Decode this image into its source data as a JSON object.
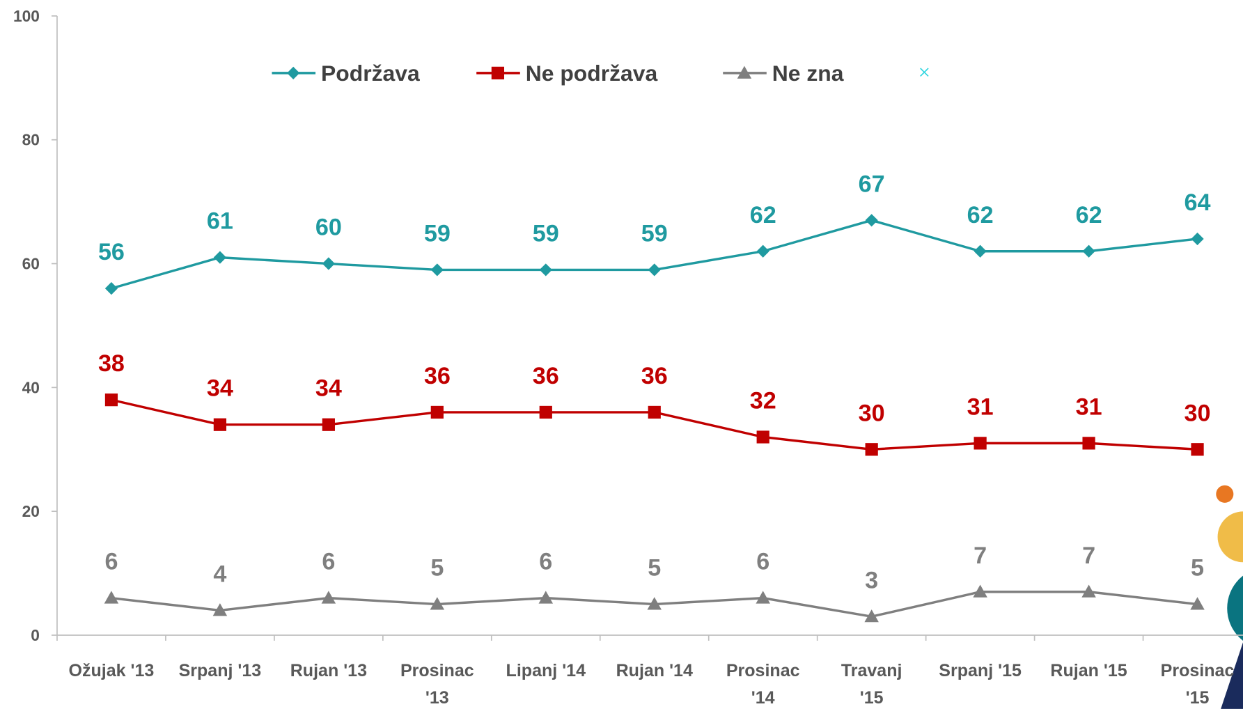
{
  "chart_data": {
    "type": "line",
    "categories": [
      "Ožujak '13",
      "Srpanj '13",
      "Rujan '13",
      "Prosinac '13",
      "Lipanj '14",
      "Rujan '14",
      "Prosinac '14",
      "Travanj '15",
      "Srpanj '15",
      "Rujan '15",
      "Prosinac '15"
    ],
    "series": [
      {
        "name": "Podržava",
        "color": "#1f9aa0",
        "marker": "diamond",
        "values": [
          56,
          61,
          60,
          59,
          59,
          59,
          62,
          67,
          62,
          62,
          64
        ]
      },
      {
        "name": "Ne podržava",
        "color": "#c00000",
        "marker": "square",
        "values": [
          38,
          34,
          34,
          36,
          36,
          36,
          32,
          30,
          31,
          31,
          30
        ]
      },
      {
        "name": "Ne zna",
        "color": "#7f7f7f",
        "marker": "triangle",
        "values": [
          6,
          4,
          6,
          5,
          6,
          5,
          6,
          3,
          7,
          7,
          5
        ]
      }
    ],
    "ylim": [
      0,
      100
    ],
    "yticks": [
      0,
      20,
      40,
      60,
      80,
      100
    ],
    "grid": false,
    "legend": "top"
  }
}
